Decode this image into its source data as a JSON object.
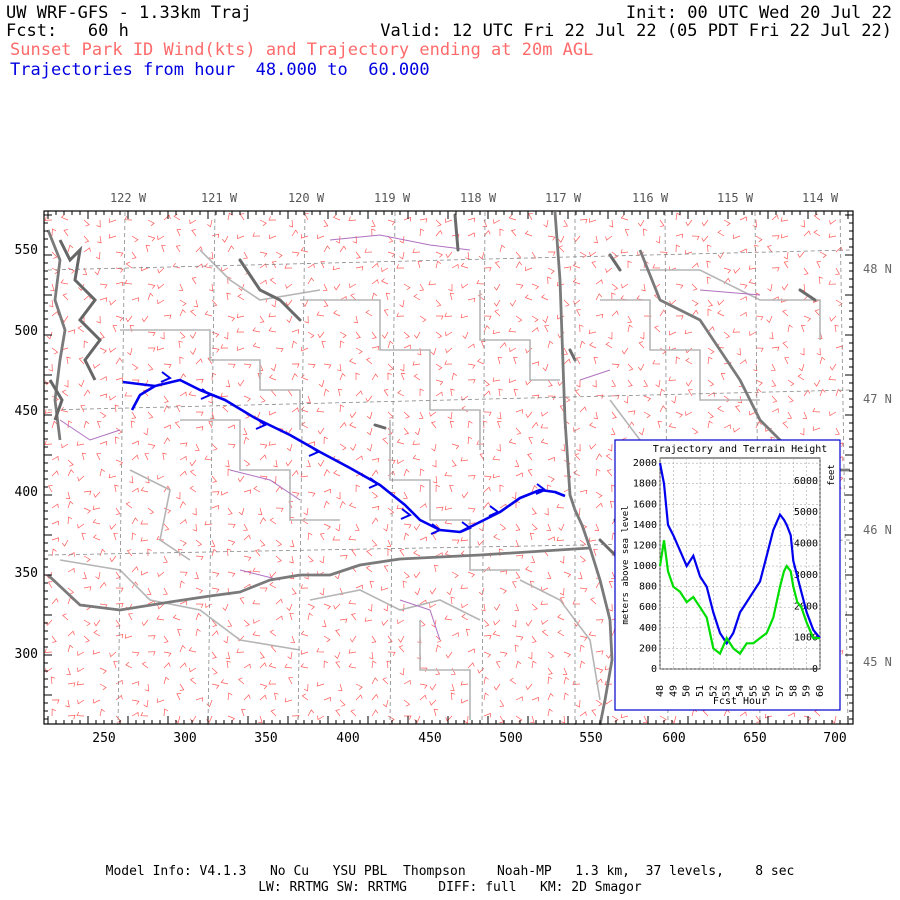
{
  "header": {
    "model": "UW WRF-GFS - 1.33km Traj",
    "init": "Init: 00 UTC Wed 20 Jul 22",
    "fcst": "Fcst:   60 h",
    "valid": "Valid: 12 UTC Fri 22 Jul 22 (05 PDT Fri 22 Jul 22)",
    "product": "Sunset Park ID Wind(kts) and Trajectory ending at 20m AGL",
    "traj_range": "Trajectories from hour  48.000 to  60.000"
  },
  "map": {
    "lon_labels": [
      "122 W",
      "121 W",
      "120 W",
      "119 W",
      "118 W",
      "117 W",
      "116 W",
      "115 W",
      "114 W"
    ],
    "lat_labels": [
      "48 N",
      "47 N",
      "46 N",
      "45 N"
    ],
    "x_ticks": [
      "250",
      "300",
      "350",
      "400",
      "450",
      "500",
      "550",
      "600",
      "650",
      "700"
    ],
    "y_ticks": [
      "550",
      "500",
      "450",
      "400",
      "350",
      "300"
    ],
    "colors": {
      "barb": "#ff5a5a",
      "border": "#808080",
      "state": "#777777",
      "county": "#b0b0b0",
      "trajectory": "#0000ee",
      "terrain": "#00dd00"
    }
  },
  "inset": {
    "title": "Trajectory and Terrain Height",
    "ylabel_left": "meters above sea level",
    "ylabel_right": "feet",
    "xlabel": "Fcst Hour",
    "left_ticks": [
      "2000",
      "1800",
      "1600",
      "1400",
      "1200",
      "1000",
      "800",
      "600",
      "400",
      "200",
      "0"
    ],
    "right_ticks": [
      "6000",
      "5000",
      "4000",
      "3000",
      "2000",
      "1000",
      "0"
    ],
    "x_ticks": [
      "48",
      "49",
      "50",
      "51",
      "52",
      "53",
      "54",
      "55",
      "56",
      "57",
      "58",
      "59",
      "60"
    ]
  },
  "chart_data": {
    "type": "line",
    "title": "Trajectory and Terrain Height",
    "xlabel": "Fcst Hour",
    "ylabel": "meters above sea level",
    "xlim": [
      48,
      60
    ],
    "ylim": [
      0,
      2050
    ],
    "series": [
      {
        "color": "#0000ee",
        "x": [
          48,
          48.3,
          48.6,
          49,
          49.5,
          50,
          50.5,
          51,
          51.5,
          52,
          52.5,
          53,
          53.5,
          54,
          54.5,
          55,
          55.5,
          56,
          56.5,
          57,
          57.3,
          57.5,
          57.8,
          58,
          58.3,
          58.6,
          59,
          59.5,
          60
        ],
        "values": [
          2000,
          1800,
          1400,
          1300,
          1150,
          1000,
          1100,
          900,
          800,
          550,
          350,
          250,
          350,
          550,
          650,
          750,
          850,
          1100,
          1350,
          1500,
          1450,
          1400,
          1300,
          1050,
          900,
          750,
          550,
          380,
          300
        ]
      },
      {
        "color": "#00dd00",
        "x": [
          48,
          48.3,
          48.6,
          49,
          49.5,
          50,
          50.5,
          51,
          51.5,
          52,
          52.5,
          53,
          53.5,
          54,
          54.5,
          55,
          55.5,
          56,
          56.5,
          57,
          57.3,
          57.5,
          57.8,
          58,
          58.3,
          58.6,
          59,
          59.5,
          60
        ],
        "values": [
          1000,
          1250,
          950,
          800,
          750,
          650,
          700,
          600,
          500,
          200,
          150,
          300,
          200,
          150,
          250,
          250,
          300,
          350,
          500,
          800,
          950,
          1000,
          950,
          800,
          650,
          600,
          450,
          300,
          300
        ]
      }
    ]
  },
  "footer": {
    "line1": "Model Info: V4.1.3   No Cu   YSU PBL  Thompson    Noah-MP   1.3 km,  37 levels,    8 sec",
    "line2": "LW: RRTMG SW: RRTMG    DIFF: full   KM: 2D Smagor"
  }
}
